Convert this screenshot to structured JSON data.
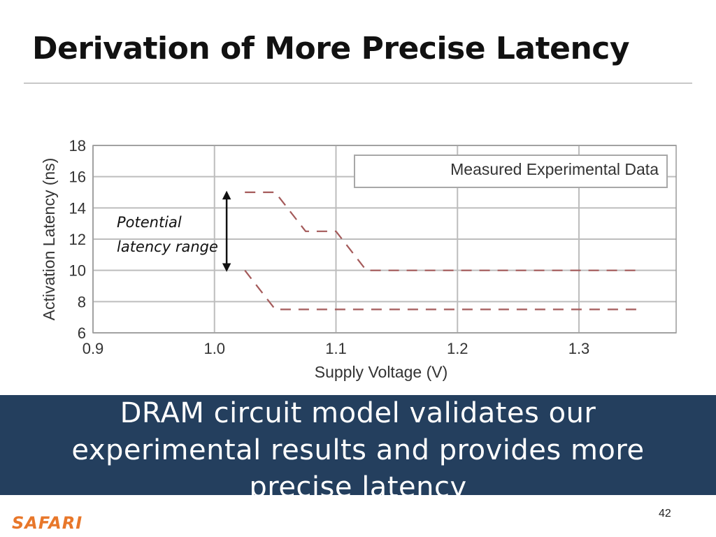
{
  "slide": {
    "title": "Derivation of More Precise Latency",
    "takeaway": "DRAM circuit model validates our experimental results and provides more precise latency",
    "page_number": "42",
    "logo_text": "SAFARI"
  },
  "colors": {
    "banner": "#243f5e",
    "dashed_line": "#a45a5a",
    "grid": "#bdbdbd",
    "logo": "#e8772a"
  },
  "chart_data": {
    "type": "line",
    "title": "",
    "xlabel": "Supply Voltage (V)",
    "ylabel": "Activation Latency (ns)",
    "xlim": [
      0.9,
      1.38
    ],
    "ylim": [
      6,
      18
    ],
    "x_ticks": [
      "0.9",
      "1.0",
      "1.1",
      "1.2",
      "1.3"
    ],
    "y_ticks": [
      "6",
      "8",
      "10",
      "12",
      "14",
      "16",
      "18"
    ],
    "grid": true,
    "legend": {
      "text": "Measured Experimental Data",
      "placement": "top-right"
    },
    "series": [
      {
        "style": "dashed",
        "points": [
          [
            1.025,
            15
          ],
          [
            1.05,
            15
          ],
          [
            1.075,
            12.5
          ],
          [
            1.1,
            12.5
          ],
          [
            1.125,
            10
          ],
          [
            1.35,
            10
          ]
        ]
      },
      {
        "style": "dashed",
        "points": [
          [
            1.025,
            10
          ],
          [
            1.05,
            7.5
          ],
          [
            1.35,
            7.5
          ]
        ]
      }
    ],
    "annotation": {
      "text_line1": "Potential",
      "text_line2": "latency range",
      "arrow_x": 1.01,
      "arrow_y_range": [
        10,
        15
      ]
    }
  }
}
